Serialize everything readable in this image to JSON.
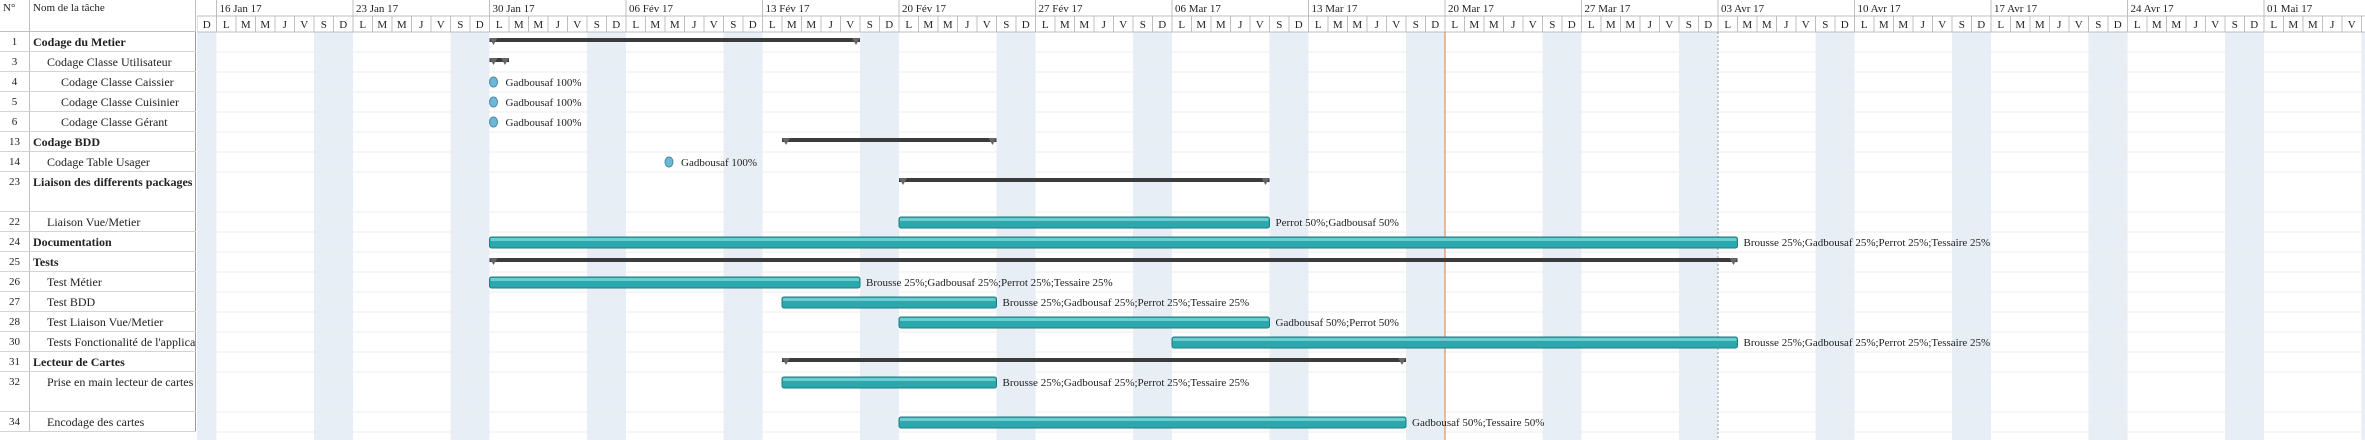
{
  "columns": {
    "num": "N°",
    "name": "Nom de la tâche"
  },
  "timeline": {
    "weeks": [
      "16 Jan 17",
      "23 Jan 17",
      "30 Jan 17",
      "06 Fév 17",
      "13 Fév 17",
      "20 Fév 17",
      "27 Fév 17",
      "06 Mar 17",
      "13 Mar 17",
      "20 Mar 17",
      "27 Mar 17",
      "03 Avr 17",
      "10 Avr 17",
      "17 Avr 17",
      "24 Avr 17",
      "01 Mai 17"
    ],
    "day_letters": [
      "D",
      "L",
      "M",
      "M",
      "J",
      "V",
      "S"
    ]
  },
  "tasks": [
    {
      "id": "1",
      "name": "Codage du Metier",
      "summary": true,
      "indent": 0
    },
    {
      "id": "3",
      "name": "Codage Classe Utilisateur",
      "summary": false,
      "indent": 1
    },
    {
      "id": "4",
      "name": "Codage Classe Caissier",
      "summary": false,
      "indent": 2,
      "resources": "Gadbousaf 100%"
    },
    {
      "id": "5",
      "name": "Codage Classe Cuisinier",
      "summary": false,
      "indent": 2,
      "resources": "Gadbousaf 100%"
    },
    {
      "id": "6",
      "name": "Codage Classe Gérant",
      "summary": false,
      "indent": 2,
      "resources": "Gadbousaf 100%"
    },
    {
      "id": "13",
      "name": "Codage BDD",
      "summary": true,
      "indent": 0
    },
    {
      "id": "14",
      "name": "Codage Table Usager",
      "summary": false,
      "indent": 1,
      "resources": "Gadbousaf 100%"
    },
    {
      "id": "23",
      "name": "Liaison des differents packages",
      "summary": true,
      "indent": 0,
      "tall": true
    },
    {
      "id": "22",
      "name": "Liaison Vue/Metier",
      "summary": false,
      "indent": 1,
      "resources": "Perrot 50%;Gadbousaf 50%"
    },
    {
      "id": "24",
      "name": "Documentation",
      "summary": true,
      "indent": 0,
      "resources": "Brousse 25%;Gadbousaf 25%;Perrot 25%;Tessaire 25%"
    },
    {
      "id": "25",
      "name": "Tests",
      "summary": true,
      "indent": 0
    },
    {
      "id": "26",
      "name": "Test Métier",
      "summary": false,
      "indent": 1,
      "resources": "Brousse 25%;Gadbousaf 25%;Perrot 25%;Tessaire 25%"
    },
    {
      "id": "27",
      "name": "Test BDD",
      "summary": false,
      "indent": 1,
      "resources": "Brousse 25%;Gadbousaf 25%;Perrot 25%;Tessaire 25%"
    },
    {
      "id": "28",
      "name": "Test Liaison Vue/Metier",
      "summary": false,
      "indent": 1,
      "resources": "Gadbousaf 50%;Perrot 50%"
    },
    {
      "id": "30",
      "name": "Tests Fonctionalité de l'application",
      "summary": false,
      "indent": 1,
      "resources": "Brousse 25%;Gadbousaf 25%;Perrot 25%;Tessaire 25%"
    },
    {
      "id": "31",
      "name": "Lecteur de Cartes",
      "summary": true,
      "indent": 0
    },
    {
      "id": "32",
      "name": "Prise en main lecteur de cartes",
      "summary": false,
      "indent": 1,
      "tall": true,
      "resources": "Brousse 25%;Gadbousaf 25%;Perrot 25%;Tessaire 25%"
    },
    {
      "id": "34",
      "name": "Encodage des cartes",
      "summary": false,
      "indent": 1,
      "resources": "Gadbousaf 50%;Tessaire 50%"
    }
  ],
  "schedule": [
    {
      "task": "1",
      "type": "summary",
      "start": "2017-01-30",
      "end": "2017-02-17"
    },
    {
      "task": "3",
      "type": "summary",
      "start": "2017-01-30",
      "end": "2017-01-30"
    },
    {
      "task": "4",
      "type": "milestone",
      "start": "2017-01-30"
    },
    {
      "task": "5",
      "type": "milestone",
      "start": "2017-01-30"
    },
    {
      "task": "6",
      "type": "milestone",
      "start": "2017-01-30"
    },
    {
      "task": "13",
      "type": "summary",
      "start": "2017-02-14",
      "end": "2017-02-24"
    },
    {
      "task": "14",
      "type": "milestone",
      "start": "2017-02-08"
    },
    {
      "task": "23",
      "type": "summary",
      "start": "2017-02-20",
      "end": "2017-03-10"
    },
    {
      "task": "22",
      "type": "task",
      "start": "2017-02-20",
      "end": "2017-03-10"
    },
    {
      "task": "24",
      "type": "task",
      "start": "2017-01-30",
      "end": "2017-04-03"
    },
    {
      "task": "25",
      "type": "summary",
      "start": "2017-01-30",
      "end": "2017-04-03"
    },
    {
      "task": "26",
      "type": "task",
      "start": "2017-01-30",
      "end": "2017-02-17"
    },
    {
      "task": "27",
      "type": "task",
      "start": "2017-02-14",
      "end": "2017-02-24"
    },
    {
      "task": "28",
      "type": "task",
      "start": "2017-02-20",
      "end": "2017-03-10"
    },
    {
      "task": "30",
      "type": "task",
      "start": "2017-03-06",
      "end": "2017-04-03"
    },
    {
      "task": "31",
      "type": "summary",
      "start": "2017-02-14",
      "end": "2017-03-17"
    },
    {
      "task": "32",
      "type": "task",
      "start": "2017-02-14",
      "end": "2017-02-24"
    },
    {
      "task": "34",
      "type": "task",
      "start": "2017-02-20",
      "end": "2017-03-17"
    }
  ],
  "today_line": "2017-03-20",
  "status_line": "2017-04-03",
  "colors": {
    "bar": "#2aa8ad",
    "bar_dark": "#1d7f83",
    "summary": "#3b3b3b",
    "weekend": "#e8eef5",
    "today": "#e07a3a",
    "grid": "#bfbfbf",
    "milestone": "#6db8d6"
  }
}
